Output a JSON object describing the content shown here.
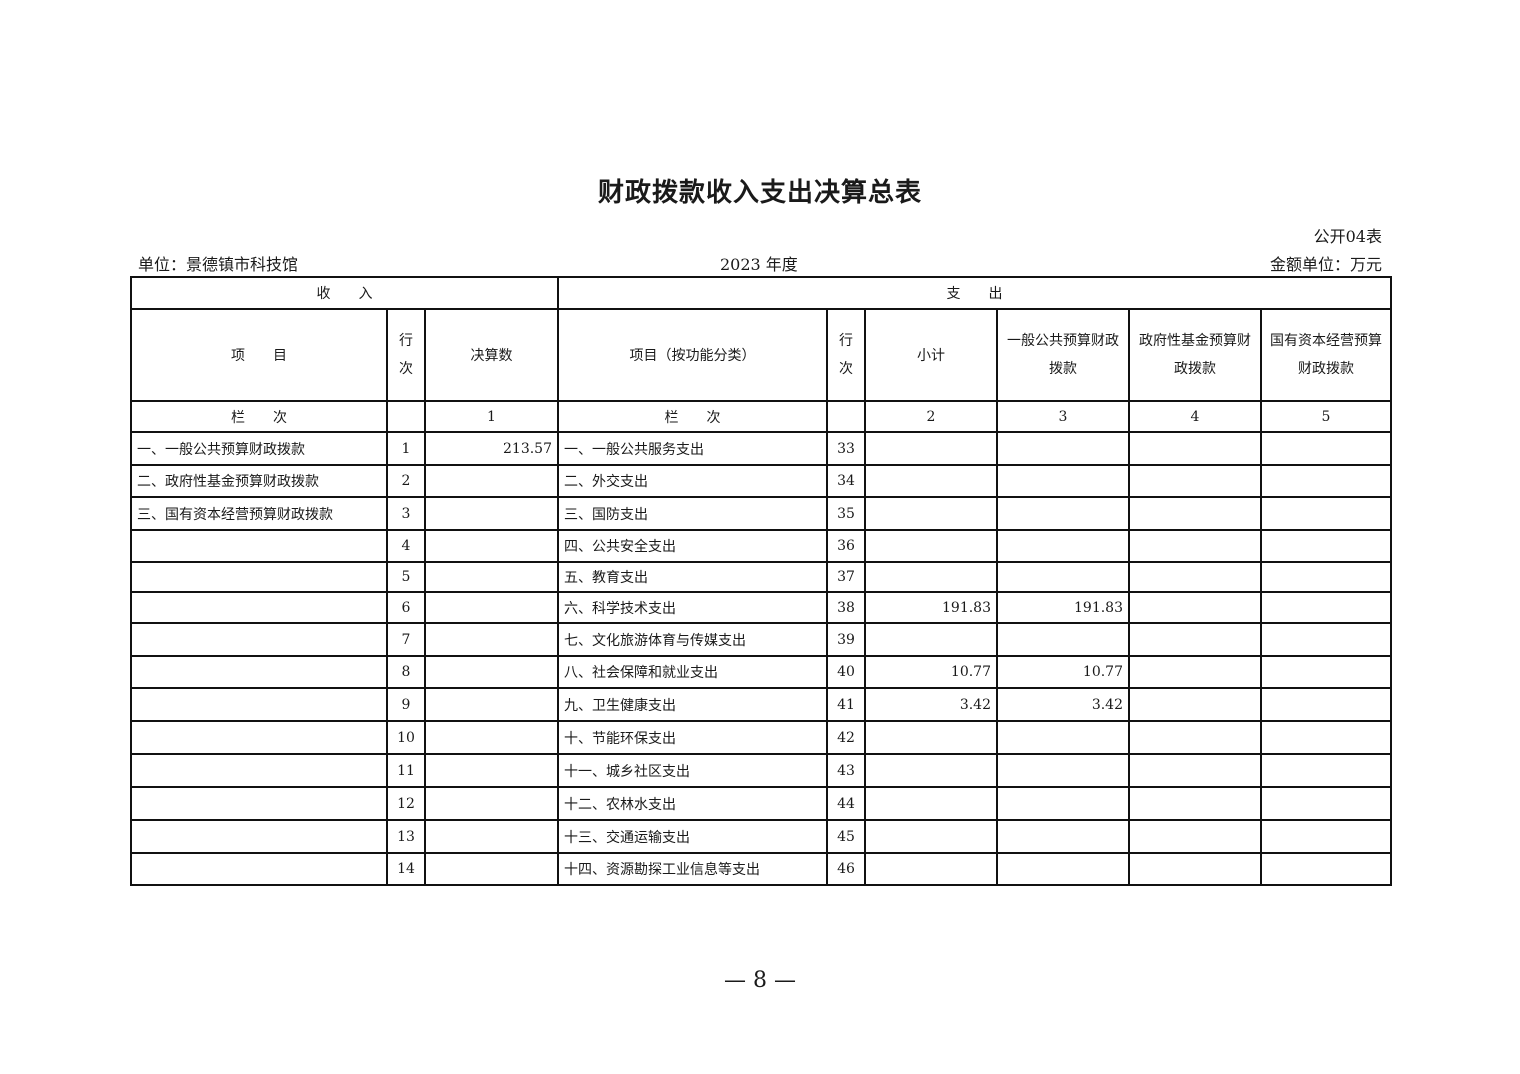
{
  "title": "财政拨款收入支出决算总表",
  "table_code": "公开04表",
  "unit_label": "单位：景德镇市科技馆",
  "year": "2023 年度",
  "money_unit": "金额单位：万元",
  "headers": {
    "income": "收　　入",
    "expense": "支　　出",
    "item": "项　　目",
    "row_no": "行次",
    "final_amount": "决算数",
    "item_by_function": "项目（按功能分类）",
    "subtotal": "小计",
    "general_budget": "一般公共预算财政拨款",
    "gov_fund": "政府性基金预算财政拨款",
    "state_capital": "国有资本经营预算财政拨款",
    "column_order": "栏　　次",
    "col1": "1",
    "col2": "2",
    "col3": "3",
    "col4": "4",
    "col5": "5"
  },
  "rows": [
    {
      "income_item": "一、一般公共预算财政拨款",
      "income_no": "1",
      "income_amount": "213.57",
      "expense_item": "一、一般公共服务支出",
      "expense_no": "33",
      "subtotal": "",
      "general": "",
      "fund": "",
      "capital": ""
    },
    {
      "income_item": "二、政府性基金预算财政拨款",
      "income_no": "2",
      "income_amount": "",
      "expense_item": "二、外交支出",
      "expense_no": "34",
      "subtotal": "",
      "general": "",
      "fund": "",
      "capital": ""
    },
    {
      "income_item": "三、国有资本经营预算财政拨款",
      "income_no": "3",
      "income_amount": "",
      "expense_item": "三、国防支出",
      "expense_no": "35",
      "subtotal": "",
      "general": "",
      "fund": "",
      "capital": ""
    },
    {
      "income_item": "",
      "income_no": "4",
      "income_amount": "",
      "expense_item": "四、公共安全支出",
      "expense_no": "36",
      "subtotal": "",
      "general": "",
      "fund": "",
      "capital": ""
    },
    {
      "income_item": "",
      "income_no": "5",
      "income_amount": "",
      "expense_item": "五、教育支出",
      "expense_no": "37",
      "subtotal": "",
      "general": "",
      "fund": "",
      "capital": ""
    },
    {
      "income_item": "",
      "income_no": "6",
      "income_amount": "",
      "expense_item": "六、科学技术支出",
      "expense_no": "38",
      "subtotal": "191.83",
      "general": "191.83",
      "fund": "",
      "capital": ""
    },
    {
      "income_item": "",
      "income_no": "7",
      "income_amount": "",
      "expense_item": "七、文化旅游体育与传媒支出",
      "expense_no": "39",
      "subtotal": "",
      "general": "",
      "fund": "",
      "capital": ""
    },
    {
      "income_item": "",
      "income_no": "8",
      "income_amount": "",
      "expense_item": "八、社会保障和就业支出",
      "expense_no": "40",
      "subtotal": "10.77",
      "general": "10.77",
      "fund": "",
      "capital": ""
    },
    {
      "income_item": "",
      "income_no": "9",
      "income_amount": "",
      "expense_item": "九、卫生健康支出",
      "expense_no": "41",
      "subtotal": "3.42",
      "general": "3.42",
      "fund": "",
      "capital": ""
    },
    {
      "income_item": "",
      "income_no": "10",
      "income_amount": "",
      "expense_item": "十、节能环保支出",
      "expense_no": "42",
      "subtotal": "",
      "general": "",
      "fund": "",
      "capital": ""
    },
    {
      "income_item": "",
      "income_no": "11",
      "income_amount": "",
      "expense_item": "十一、城乡社区支出",
      "expense_no": "43",
      "subtotal": "",
      "general": "",
      "fund": "",
      "capital": ""
    },
    {
      "income_item": "",
      "income_no": "12",
      "income_amount": "",
      "expense_item": "十二、农林水支出",
      "expense_no": "44",
      "subtotal": "",
      "general": "",
      "fund": "",
      "capital": ""
    },
    {
      "income_item": "",
      "income_no": "13",
      "income_amount": "",
      "expense_item": "十三、交通运输支出",
      "expense_no": "45",
      "subtotal": "",
      "general": "",
      "fund": "",
      "capital": ""
    },
    {
      "income_item": "",
      "income_no": "14",
      "income_amount": "",
      "expense_item": "十四、资源勘探工业信息等支出",
      "expense_no": "46",
      "subtotal": "",
      "general": "",
      "fund": "",
      "capital": ""
    }
  ],
  "page_number": "— 8 —"
}
